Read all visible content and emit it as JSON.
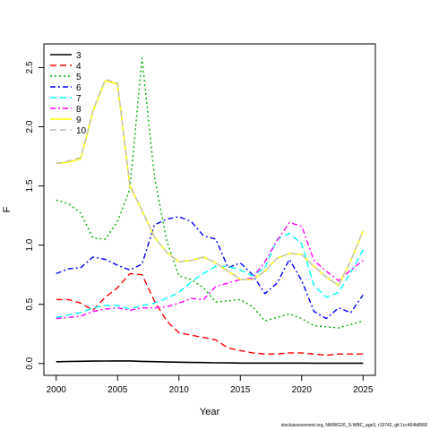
{
  "chart_data": {
    "type": "line",
    "title": "",
    "xlabel": "Year",
    "ylabel": "F",
    "xlim": [
      1999,
      2026
    ],
    "ylim": [
      -0.1,
      2.7
    ],
    "xticks": [
      2000,
      2005,
      2010,
      2015,
      2020,
      2025
    ],
    "yticks": [
      0.0,
      0.5,
      1.0,
      1.5,
      2.0,
      2.5
    ],
    "x": [
      2000,
      2001,
      2002,
      2003,
      2004,
      2005,
      2006,
      2007,
      2008,
      2009,
      2010,
      2011,
      2012,
      2013,
      2014,
      2015,
      2016,
      2017,
      2018,
      2019,
      2020,
      2021,
      2022,
      2023,
      2024,
      2025
    ],
    "legend_position": "top-left",
    "grid": false,
    "series": [
      {
        "name": "3",
        "color": "#000000",
        "dash": "solid",
        "width": 1.6,
        "values": [
          0.015,
          0.017,
          0.019,
          0.02,
          0.021,
          0.022,
          0.022,
          0.018,
          0.016,
          0.013,
          0.011,
          0.009,
          0.008,
          0.006,
          0.005,
          0.004,
          0.004,
          0.004,
          0.004,
          0.004,
          0.004,
          0.003,
          0.003,
          0.003,
          0.003,
          0.003
        ]
      },
      {
        "name": "4",
        "color": "#ff0000",
        "dash": "long",
        "width": 1.4,
        "values": [
          0.54,
          0.54,
          0.51,
          0.45,
          0.56,
          0.64,
          0.76,
          0.75,
          0.53,
          0.36,
          0.26,
          0.24,
          0.22,
          0.2,
          0.13,
          0.11,
          0.09,
          0.08,
          0.08,
          0.09,
          0.09,
          0.08,
          0.07,
          0.08,
          0.08,
          0.08
        ]
      },
      {
        "name": "5",
        "color": "#00b000",
        "dash": "dot",
        "width": 1.4,
        "values": [
          1.38,
          1.35,
          1.27,
          1.06,
          1.05,
          1.2,
          1.47,
          2.58,
          1.58,
          1.04,
          0.74,
          0.71,
          0.64,
          0.52,
          0.53,
          0.54,
          0.48,
          0.36,
          0.39,
          0.42,
          0.38,
          0.32,
          0.31,
          0.3,
          0.33,
          0.36
        ]
      },
      {
        "name": "6",
        "color": "#0000ff",
        "dash": "dashdot",
        "width": 1.4,
        "values": [
          0.76,
          0.8,
          0.81,
          0.9,
          0.88,
          0.83,
          0.79,
          0.84,
          1.17,
          1.22,
          1.24,
          1.2,
          1.08,
          1.05,
          0.81,
          0.85,
          0.75,
          0.59,
          0.68,
          0.88,
          0.7,
          0.44,
          0.38,
          0.47,
          0.43,
          0.58
        ]
      },
      {
        "name": "7",
        "color": "#00ffff",
        "dash": "long",
        "width": 1.4,
        "values": [
          0.39,
          0.41,
          0.43,
          0.47,
          0.49,
          0.49,
          0.46,
          0.49,
          0.51,
          0.55,
          0.6,
          0.69,
          0.76,
          0.82,
          0.82,
          0.79,
          0.74,
          0.81,
          1.05,
          1.1,
          1.01,
          0.66,
          0.56,
          0.6,
          0.77,
          0.96
        ]
      },
      {
        "name": "8",
        "color": "#ff00ff",
        "dash": "dashdot",
        "width": 1.4,
        "values": [
          0.38,
          0.39,
          0.4,
          0.44,
          0.46,
          0.47,
          0.45,
          0.47,
          0.47,
          0.48,
          0.51,
          0.55,
          0.54,
          0.65,
          0.68,
          0.71,
          0.72,
          0.86,
          1.04,
          1.19,
          1.16,
          0.87,
          0.78,
          0.7,
          0.79,
          0.87
        ]
      },
      {
        "name": "9",
        "color": "#ffff00",
        "dash": "solid",
        "width": 1.6,
        "values": [
          1.69,
          1.7,
          1.73,
          2.13,
          2.39,
          2.36,
          1.5,
          1.29,
          1.07,
          0.94,
          0.86,
          0.87,
          0.9,
          0.85,
          0.78,
          0.71,
          0.71,
          0.78,
          0.89,
          0.93,
          0.92,
          0.82,
          0.73,
          0.66,
          0.87,
          1.12
        ]
      },
      {
        "name": "10",
        "color": "#bebebe",
        "dash": "long",
        "width": 1.4,
        "values": [
          1.69,
          1.71,
          1.74,
          2.14,
          2.4,
          2.37,
          1.51,
          1.29,
          1.07,
          0.94,
          0.86,
          0.87,
          0.9,
          0.85,
          0.78,
          0.71,
          0.71,
          0.78,
          0.89,
          0.93,
          0.92,
          0.82,
          0.73,
          0.66,
          0.87,
          1.12
        ]
      }
    ]
  },
  "footer_text": "stockassessment.org, NWWG26_S-WBC_age3, r19742, git:1cc464b8068"
}
